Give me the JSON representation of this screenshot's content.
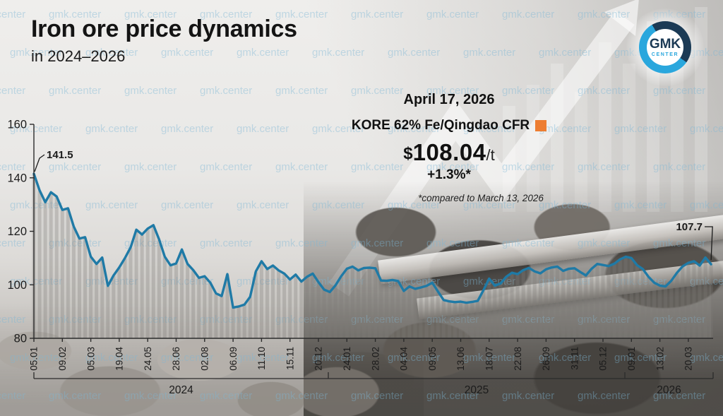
{
  "title": "Iron ore price dynamics",
  "subtitle": "in 2024–2026",
  "watermark": "gmk.center",
  "logo": {
    "line1": "GMK",
    "line2": "CENTER"
  },
  "annotation": {
    "date": "April 17, 2026",
    "series_label": "KORE 62% Fe/Qingdao CFR",
    "currency": "$",
    "price": "108.04",
    "price_unit": "/t",
    "change": "+1.3%*",
    "footnote": "*compared to March 13, 2026",
    "accent_color": "#ed7d31"
  },
  "chart_data": {
    "type": "line",
    "title": "Iron ore price dynamics in 2024–2026",
    "series_name": "KORE 62% Fe/Qingdao CFR, $/t",
    "line_color": "#1f7aa6",
    "area_stripe_color": "rgba(125,122,118,0.30)",
    "area_fill_color": "rgba(168,165,161,0.18)",
    "ylim": [
      80,
      160
    ],
    "y_ticks": [
      160,
      140,
      120,
      100,
      80
    ],
    "x_tick_labels": [
      "05.01",
      "09.02",
      "05.03",
      "19.04",
      "24.05",
      "28.06",
      "02.08",
      "06.09",
      "11.10",
      "15.11",
      "20.12",
      "24.01",
      "28.02",
      "04.04",
      "09.05",
      "13.06",
      "18.07",
      "22.08",
      "26.09",
      "31.11",
      "05.12",
      "09.01",
      "13.02",
      "20.03"
    ],
    "x_tick_every_n_points": 5,
    "year_labels": [
      "2024",
      "2025",
      "2026"
    ],
    "first_point_label": "141.5",
    "last_point_label": "107.7",
    "grid": "off",
    "values": [
      141.5,
      135.3,
      130.9,
      134.6,
      133.0,
      128.0,
      128.6,
      121.8,
      117.3,
      117.8,
      110.5,
      107.8,
      110.2,
      99.6,
      103.5,
      106.5,
      110.0,
      114.0,
      120.6,
      118.8,
      121.0,
      122.3,
      117.0,
      110.5,
      107.3,
      108.0,
      113.2,
      107.8,
      105.5,
      102.6,
      103.2,
      100.8,
      96.8,
      95.8,
      104.0,
      91.5,
      91.9,
      92.6,
      95.5,
      105.0,
      108.8,
      105.9,
      107.2,
      105.4,
      104.2,
      102.0,
      103.8,
      101.2,
      103.0,
      104.2,
      101.0,
      98.2,
      97.3,
      99.8,
      103.2,
      106.0,
      106.8,
      105.4,
      106.3,
      106.4,
      106.2,
      101.6,
      101.5,
      101.8,
      101.4,
      97.7,
      99.4,
      98.5,
      99.0,
      99.6,
      100.8,
      97.5,
      94.3,
      93.8,
      93.5,
      93.7,
      93.3,
      93.6,
      94.0,
      98.0,
      102.3,
      99.7,
      100.5,
      103.0,
      104.5,
      104.0,
      105.5,
      106.3,
      105.0,
      104.3,
      105.8,
      106.5,
      106.8,
      105.2,
      106.0,
      106.2,
      104.8,
      103.5,
      106.0,
      107.8,
      107.4,
      107.0,
      107.9,
      109.5,
      110.5,
      110.0,
      107.3,
      105.9,
      103.0,
      100.8,
      99.7,
      99.4,
      101.5,
      104.5,
      106.9,
      108.2,
      108.8,
      107.2,
      110.2,
      107.7
    ]
  }
}
